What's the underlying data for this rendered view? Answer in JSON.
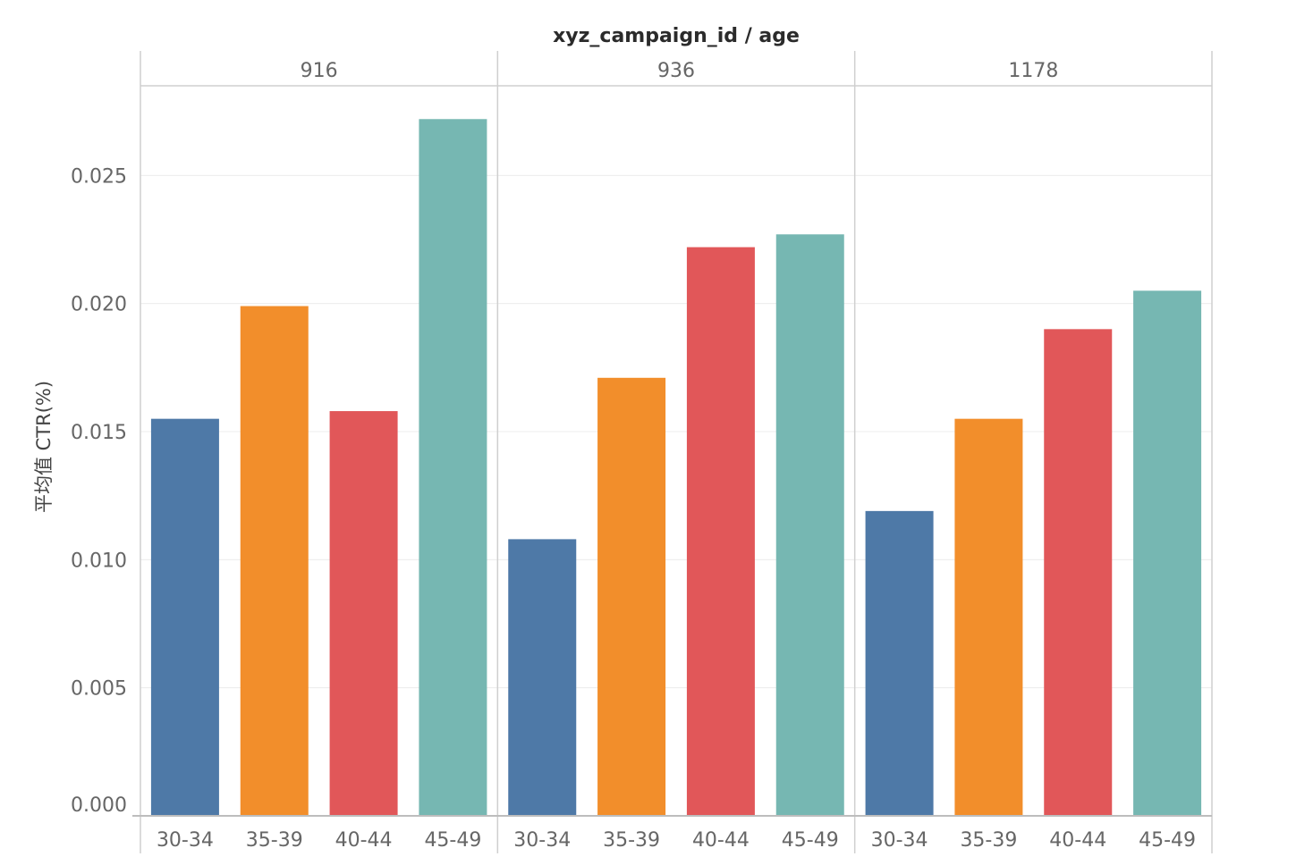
{
  "chart_data": {
    "type": "bar",
    "title": "xyz_campaign_id / age",
    "ylabel": "平均值 CTR(%)",
    "xlabel": "",
    "ylim": [
      0,
      0.0285
    ],
    "yticks": [
      0.0,
      0.005,
      0.01,
      0.015,
      0.02,
      0.025
    ],
    "ytick_labels": [
      "0.000",
      "0.005",
      "0.010",
      "0.015",
      "0.020",
      "0.025"
    ],
    "grid": true,
    "categories": [
      "30-34",
      "35-39",
      "40-44",
      "45-49"
    ],
    "category_colors": [
      "#4e79a7",
      "#f28e2b",
      "#e15759",
      "#76b7b2"
    ],
    "panels": [
      {
        "name": "916",
        "values": [
          0.0155,
          0.0199,
          0.0158,
          0.0272
        ]
      },
      {
        "name": "936",
        "values": [
          0.0108,
          0.0171,
          0.0222,
          0.0227
        ]
      },
      {
        "name": "1178",
        "values": [
          0.0119,
          0.0155,
          0.019,
          0.0205
        ]
      }
    ]
  },
  "colors": {
    "gridline": "#ececec",
    "panel_border": "#cfcfcf",
    "axis_line": "#bdbdbd"
  }
}
